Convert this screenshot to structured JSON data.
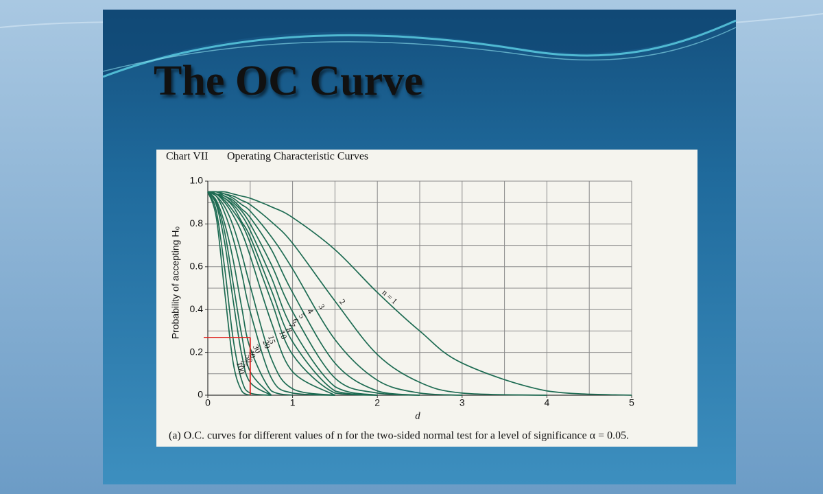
{
  "slide": {
    "title": "The OC Curve"
  },
  "chart_data": {
    "type": "line",
    "chart_label": "Chart VII",
    "title": "Operating Characteristic Curves",
    "x_label": "d",
    "y_label": "Probability of accepting H₀",
    "caption": "(a)  O.C. curves for different values of n for the two-sided normal test for a level of significance α = 0.05.",
    "x": [
      0,
      0.1,
      0.2,
      0.3,
      0.4,
      0.5,
      0.75,
      1,
      1.5,
      2,
      2.5,
      3,
      4,
      5
    ],
    "xlim": [
      0,
      5
    ],
    "ylim": [
      0,
      1
    ],
    "xticks": [
      0,
      1,
      2,
      3,
      4,
      5
    ],
    "yticks": [
      0,
      0.2,
      0.4,
      0.6,
      0.8,
      {
        "value": 1,
        "label": "1.0"
      }
    ],
    "xgrid": [
      0,
      0.5,
      1,
      1.5,
      2,
      2.5,
      3,
      3.5,
      4,
      4.5,
      5
    ],
    "ygrid": [
      0,
      0.1,
      0.2,
      0.3,
      0.4,
      0.5,
      0.6,
      0.7,
      0.8,
      0.9,
      1
    ],
    "grid": true,
    "color": "#1d6b52",
    "reference_point": {
      "x": 0.5,
      "y": 0.27,
      "color": "#e0201c"
    },
    "series": [
      {
        "name": "n = 1",
        "values": [
          0.95,
          0.95,
          0.95,
          0.94,
          0.93,
          0.92,
          0.88,
          0.83,
          0.68,
          0.48,
          0.3,
          0.15,
          0.02,
          0
        ]
      },
      {
        "name": "2",
        "values": [
          0.95,
          0.95,
          0.94,
          0.93,
          0.91,
          0.89,
          0.81,
          0.71,
          0.44,
          0.19,
          0.06,
          0.01,
          0,
          null
        ]
      },
      {
        "name": "3",
        "values": [
          0.95,
          0.95,
          0.94,
          0.92,
          0.89,
          0.86,
          0.74,
          0.59,
          0.26,
          0.07,
          0.01,
          0,
          null,
          null
        ]
      },
      {
        "name": "4",
        "values": [
          0.95,
          0.95,
          0.93,
          0.91,
          0.87,
          0.83,
          0.68,
          0.48,
          0.15,
          0.02,
          0,
          null,
          null,
          null
        ]
      },
      {
        "name": "5",
        "values": [
          0.95,
          0.94,
          0.93,
          0.9,
          0.86,
          0.8,
          0.61,
          0.39,
          0.08,
          0.01,
          0,
          null,
          null,
          null
        ]
      },
      {
        "name": "6",
        "values": [
          0.95,
          0.94,
          0.92,
          0.89,
          0.84,
          0.77,
          0.55,
          0.31,
          0.04,
          0,
          null,
          null,
          null,
          null
        ]
      },
      {
        "name": "7",
        "values": [
          0.95,
          0.94,
          0.92,
          0.88,
          0.81,
          0.74,
          0.49,
          0.25,
          0.02,
          0,
          null,
          null,
          null,
          null
        ]
      },
      {
        "name": "8",
        "values": [
          0.95,
          0.94,
          0.91,
          0.86,
          0.8,
          0.71,
          0.44,
          0.19,
          0.01,
          0,
          null,
          null,
          null,
          null
        ]
      },
      {
        "name": "10",
        "values": [
          0.95,
          0.94,
          0.9,
          0.84,
          0.76,
          0.65,
          0.34,
          0.11,
          0,
          null,
          null,
          null,
          null,
          null
        ]
      },
      {
        "name": "15",
        "values": [
          0.95,
          0.93,
          0.88,
          0.79,
          0.66,
          0.51,
          0.17,
          0.03,
          0,
          null,
          null,
          null,
          null,
          null
        ]
      },
      {
        "name": "20",
        "values": [
          0.95,
          0.93,
          0.85,
          0.73,
          0.57,
          0.39,
          0.08,
          0.01,
          0,
          null,
          null,
          null,
          null,
          null
        ]
      },
      {
        "name": "30",
        "values": [
          0.95,
          0.91,
          0.8,
          0.63,
          0.41,
          0.22,
          0.02,
          0,
          null,
          null,
          null,
          null,
          null,
          null
        ]
      },
      {
        "name": "40",
        "values": [
          0.95,
          0.9,
          0.76,
          0.52,
          0.28,
          0.11,
          0,
          null,
          null,
          null,
          null,
          null,
          null,
          null
        ]
      },
      {
        "name": "50",
        "values": [
          0.95,
          0.89,
          0.71,
          0.44,
          0.19,
          0.06,
          0,
          null,
          null,
          null,
          null,
          null,
          null,
          null
        ]
      },
      {
        "name": "75",
        "values": [
          0.95,
          0.86,
          0.59,
          0.26,
          0.07,
          0.01,
          0,
          null,
          null,
          null,
          null,
          null,
          null,
          null
        ]
      },
      {
        "name": "100",
        "values": [
          0.95,
          0.83,
          0.48,
          0.15,
          0.02,
          0,
          null,
          null,
          null,
          null,
          null,
          null,
          null,
          null
        ]
      }
    ]
  }
}
